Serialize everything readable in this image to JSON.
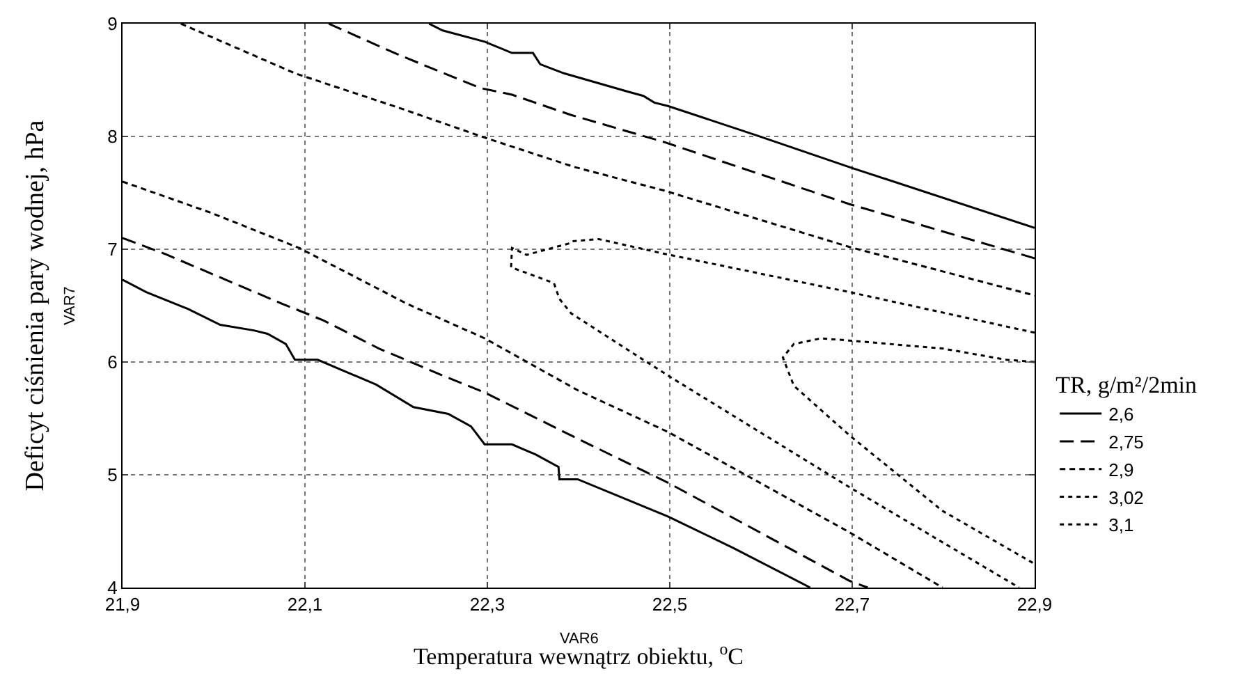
{
  "chart_data": {
    "type": "line",
    "xlabel": "Temperatura wewnątrz obiektu, $^{o}$C",
    "ylabel": "Deficyt ciśnienia pary wodnej, hPa",
    "legend_title": "TR, g/m²/2min",
    "annotations": [
      "VAR7",
      "VAR6"
    ],
    "xlim": [
      21.9,
      22.9
    ],
    "ylim": [
      4,
      9
    ],
    "xticks": [
      {
        "value": 21.9,
        "label": "21,9"
      },
      {
        "value": 22.1,
        "label": "22,1"
      },
      {
        "value": 22.3,
        "label": "22,3"
      },
      {
        "value": 22.5,
        "label": "22,5"
      },
      {
        "value": 22.7,
        "label": "22,7"
      },
      {
        "value": 22.9,
        "label": "22,9"
      }
    ],
    "yticks": [
      4,
      5,
      6,
      7,
      8,
      9
    ],
    "grid": true,
    "legend": "bottom right",
    "marker": "none",
    "series": [
      {
        "name": "2,6",
        "color": "#000000",
        "line_style": "solid",
        "x": [
          22.236,
          22.251,
          22.297,
          22.327,
          22.35,
          22.358,
          22.384,
          22.453,
          22.471,
          22.483,
          22.498,
          22.595,
          22.7,
          22.9,
          null,
          21.9,
          21.926,
          21.972,
          22.007,
          22.044,
          22.059,
          22.079,
          22.089,
          22.114,
          22.178,
          22.219,
          22.257,
          22.282,
          22.297,
          22.327,
          22.353,
          22.378,
          22.379,
          22.399,
          22.498,
          22.57,
          22.654
        ],
        "values": [
          9,
          8.94,
          8.84,
          8.74,
          8.74,
          8.64,
          8.56,
          8.4,
          8.36,
          8.3,
          8.27,
          8.01,
          7.72,
          7.19,
          null,
          6.73,
          6.62,
          6.47,
          6.33,
          6.28,
          6.25,
          6.16,
          6.02,
          6.02,
          5.8,
          5.6,
          5.54,
          5.43,
          5.27,
          5.27,
          5.18,
          5.07,
          4.96,
          4.96,
          4.63,
          4.35,
          4
        ]
      },
      {
        "name": "2,75",
        "color": "#000000",
        "line_style": "dashed",
        "x": [
          22.126,
          22.201,
          22.292,
          22.327,
          22.392,
          22.494,
          22.697,
          22.9,
          null,
          21.9,
          21.946,
          22.074,
          22.12,
          22.181,
          22.251,
          22.297,
          22.399,
          22.498,
          22.697,
          22.717
        ],
        "values": [
          9,
          8.73,
          8.43,
          8.37,
          8.19,
          7.95,
          7.4,
          6.92,
          null,
          7.1,
          6.96,
          6.52,
          6.37,
          6.12,
          5.88,
          5.73,
          5.32,
          4.93,
          4.06,
          4
        ]
      },
      {
        "name": "2,9",
        "color": "#000000",
        "line_style": "dashed",
        "x": [
          21.964,
          22.089,
          22.201,
          22.297,
          22.395,
          22.494,
          22.697,
          22.9,
          null,
          21.9,
          21.998,
          22.094,
          22.211,
          22.297,
          22.399,
          22.498,
          22.697,
          22.799
        ],
        "values": [
          9,
          8.56,
          8.26,
          7.99,
          7.73,
          7.52,
          7.02,
          6.59,
          null,
          7.6,
          7.32,
          7.01,
          6.52,
          6.21,
          5.75,
          5.38,
          4.49,
          4
        ]
      },
      {
        "name": "3,02",
        "color": "#000000",
        "line_style": "dashed",
        "x": [
          22.9,
          22.697,
          22.494,
          22.422,
          22.392,
          22.389,
          22.343,
          22.327,
          22.326,
          22.373,
          22.379,
          22.392,
          22.498,
          22.697,
          22.883
        ],
        "values": [
          6.26,
          6.62,
          6.96,
          7.09,
          7.07,
          7.05,
          6.95,
          7.01,
          6.84,
          6.7,
          6.56,
          6.43,
          5.88,
          4.89,
          4
        ]
      },
      {
        "name": "3,1",
        "color": "#000000",
        "line_style": "dotted",
        "x": [
          22.9,
          22.869,
          22.799,
          22.697,
          22.666,
          22.636,
          22.624,
          22.636,
          22.697,
          22.799,
          22.9
        ],
        "values": [
          6,
          6.02,
          6.12,
          6.19,
          6.21,
          6.16,
          6.04,
          5.79,
          5.35,
          4.68,
          4.21
        ]
      }
    ]
  }
}
